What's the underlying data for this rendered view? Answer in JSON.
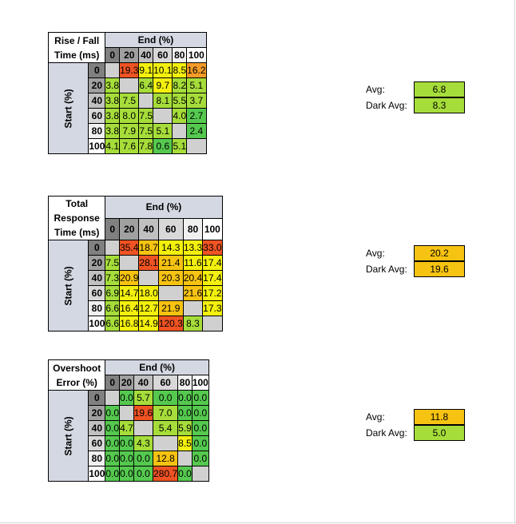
{
  "colors": {
    "header_bg": "#d3d8e2",
    "diag_gray": "#d0d0d0",
    "scale": {
      "green": "#55c94f",
      "lightgreen": "#a6dd3a",
      "yellow": "#f3f00e",
      "amber": "#f6c312",
      "orange": "#f59b27",
      "red": "#ef5323"
    }
  },
  "levels": [
    "0",
    "20",
    "40",
    "60",
    "80",
    "100"
  ],
  "level_shades": [
    "#808080",
    "#a0a0a0",
    "#c0c0c0",
    "#d8d8d8",
    "#f0f0f0",
    "#ffffff"
  ],
  "tables": [
    {
      "id": "rise-fall",
      "title_line1": "Rise / Fall",
      "title_line2": "Time (ms)",
      "end_label": "End (%)",
      "start_label": "Start (%)",
      "rows": [
        [
          "",
          "19.3",
          "9.1",
          "10.1",
          "8.5",
          "16.2"
        ],
        [
          "3.8",
          "",
          "6.4",
          "9.7",
          "8.2",
          "5.1"
        ],
        [
          "3.8",
          "7.5",
          "",
          "8.1",
          "5.5",
          "3.7"
        ],
        [
          "3.8",
          "8.0",
          "7.5",
          "",
          "4.0",
          "2.7"
        ],
        [
          "3.8",
          "7.9",
          "7.5",
          "5.1",
          "",
          "2.4"
        ],
        [
          "4.1",
          "7.6",
          "7.8",
          "0.6",
          "5.1",
          ""
        ]
      ],
      "colors": [
        [
          "diag",
          "red",
          "yellow",
          "yellow",
          "yellow",
          "orange"
        ],
        [
          "lightgreen",
          "diag",
          "lightgreen",
          "yellow",
          "lightgreen",
          "lightgreen"
        ],
        [
          "lightgreen",
          "lightgreen",
          "diag",
          "lightgreen",
          "lightgreen",
          "lightgreen"
        ],
        [
          "lightgreen",
          "lightgreen",
          "lightgreen",
          "diag",
          "lightgreen",
          "green"
        ],
        [
          "lightgreen",
          "lightgreen",
          "lightgreen",
          "lightgreen",
          "diag",
          "green"
        ],
        [
          "lightgreen",
          "lightgreen",
          "lightgreen",
          "green",
          "lightgreen",
          "diag"
        ]
      ],
      "avg_label": "Avg:",
      "avg_value": "6.8",
      "avg_color": "lightgreen",
      "dark_avg_label": "Dark Avg:",
      "dark_avg_value": "8.3",
      "dark_avg_color": "lightgreen"
    },
    {
      "id": "total-response",
      "title_line1": "Total Response",
      "title_line2": "Time (ms)",
      "end_label": "End (%)",
      "start_label": "Start (%)",
      "rows": [
        [
          "",
          "35.4",
          "18.7",
          "14.3",
          "13.3",
          "33.0"
        ],
        [
          "7.5",
          "",
          "28.1",
          "21.4",
          "11.6",
          "17.4"
        ],
        [
          "7.3",
          "20.9",
          "",
          "20.3",
          "20.4",
          "17.4"
        ],
        [
          "6.9",
          "14.7",
          "18.0",
          "",
          "21.6",
          "17.2"
        ],
        [
          "6.6",
          "16.4",
          "12.7",
          "21.9",
          "",
          "17.3"
        ],
        [
          "6.6",
          "16.8",
          "14.9",
          "120.3",
          "8.3",
          ""
        ]
      ],
      "colors": [
        [
          "diag",
          "red",
          "amber",
          "yellow",
          "yellow",
          "red"
        ],
        [
          "lightgreen",
          "diag",
          "red",
          "amber",
          "yellow",
          "yellow"
        ],
        [
          "lightgreen",
          "amber",
          "diag",
          "amber",
          "amber",
          "yellow"
        ],
        [
          "lightgreen",
          "yellow",
          "yellow",
          "diag",
          "amber",
          "yellow"
        ],
        [
          "lightgreen",
          "yellow",
          "yellow",
          "amber",
          "diag",
          "yellow"
        ],
        [
          "lightgreen",
          "yellow",
          "yellow",
          "red",
          "lightgreen",
          "diag"
        ]
      ],
      "avg_label": "Avg:",
      "avg_value": "20.2",
      "avg_color": "amber",
      "dark_avg_label": "Dark Avg:",
      "dark_avg_value": "19.6",
      "dark_avg_color": "amber"
    },
    {
      "id": "overshoot",
      "title_line1": "Overshoot",
      "title_line2": "Error (%)",
      "end_label": "End (%)",
      "start_label": "Start (%)",
      "rows": [
        [
          "",
          "0.0",
          "5.7",
          "0.0",
          "0.0",
          "0.0"
        ],
        [
          "0.0",
          "",
          "19.6",
          "7.0",
          "0.0",
          "0.0"
        ],
        [
          "0.0",
          "4.7",
          "",
          "5.4",
          "5.9",
          "0.0"
        ],
        [
          "0.0",
          "0.0",
          "4.3",
          "",
          "8.5",
          "0.0"
        ],
        [
          "0.0",
          "0.0",
          "0.0",
          "12.8",
          "",
          "0.0"
        ],
        [
          "0.0",
          "0.0",
          "0.0",
          "280.7",
          "0.0",
          ""
        ]
      ],
      "colors": [
        [
          "diag",
          "green",
          "lightgreen",
          "green",
          "green",
          "green"
        ],
        [
          "green",
          "diag",
          "red",
          "lightgreen",
          "green",
          "green"
        ],
        [
          "green",
          "lightgreen",
          "diag",
          "lightgreen",
          "lightgreen",
          "green"
        ],
        [
          "green",
          "green",
          "lightgreen",
          "diag",
          "yellow",
          "green"
        ],
        [
          "green",
          "green",
          "green",
          "amber",
          "diag",
          "green"
        ],
        [
          "green",
          "green",
          "green",
          "red",
          "green",
          "diag"
        ]
      ],
      "avg_label": "Avg:",
      "avg_value": "11.8",
      "avg_color": "amber",
      "dark_avg_label": "Dark Avg:",
      "dark_avg_value": "5.0",
      "dark_avg_color": "lightgreen"
    }
  ]
}
